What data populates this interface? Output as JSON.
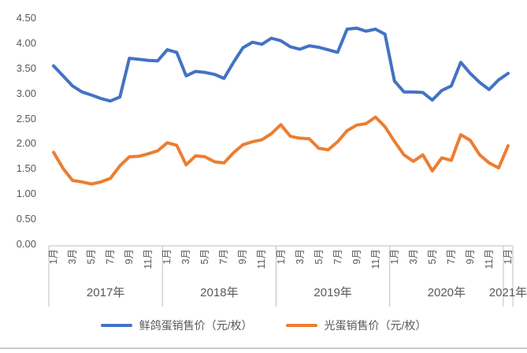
{
  "chart_data": {
    "type": "line",
    "title": "",
    "ylabel": "",
    "xlabel": "",
    "ylim": [
      0,
      4.5
    ],
    "y_tick_step": 0.5,
    "y_tick_labels": [
      "0.00",
      "0.50",
      "1.00",
      "1.50",
      "2.00",
      "2.50",
      "3.00",
      "3.50",
      "4.00",
      "4.50"
    ],
    "grid": false,
    "legend_position": "bottom",
    "x_axis": {
      "years": [
        {
          "label": "2017年",
          "month_count": 12,
          "month_labels": [
            "1月",
            "3月",
            "5月",
            "7月",
            "9月",
            "11月"
          ]
        },
        {
          "label": "2018年",
          "month_count": 12,
          "month_labels": [
            "1月",
            "3月",
            "5月",
            "7月",
            "9月",
            "11月"
          ]
        },
        {
          "label": "2019年",
          "month_count": 12,
          "month_labels": [
            "1月",
            "3月",
            "5月",
            "7月",
            "9月",
            "11月"
          ]
        },
        {
          "label": "2020年",
          "month_count": 12,
          "month_labels": [
            "1月",
            "3月",
            "5月",
            "7月",
            "9月",
            "11月"
          ]
        },
        {
          "label": "2021年",
          "month_count": 1,
          "month_labels": [
            "1月"
          ]
        }
      ]
    },
    "series": [
      {
        "name": "鲜鸽蛋销售价（元/枚）",
        "color": "#4472C4",
        "values": [
          3.55,
          3.35,
          3.15,
          3.03,
          2.97,
          2.9,
          2.85,
          2.93,
          3.7,
          3.68,
          3.66,
          3.65,
          3.87,
          3.82,
          3.35,
          3.44,
          3.42,
          3.38,
          3.3,
          3.62,
          3.91,
          4.02,
          3.98,
          4.1,
          4.05,
          3.93,
          3.88,
          3.95,
          3.92,
          3.87,
          3.82,
          4.28,
          4.3,
          4.24,
          4.28,
          4.18,
          3.25,
          3.03,
          3.03,
          3.02,
          2.87,
          3.06,
          3.15,
          3.62,
          3.4,
          3.22,
          3.08,
          3.27,
          3.4
        ]
      },
      {
        "name": "光蛋销售价（元/枚）",
        "color": "#ED7D31",
        "values": [
          1.83,
          1.51,
          1.27,
          1.24,
          1.2,
          1.24,
          1.31,
          1.56,
          1.74,
          1.75,
          1.8,
          1.86,
          2.02,
          1.97,
          1.58,
          1.76,
          1.74,
          1.64,
          1.62,
          1.82,
          1.98,
          2.04,
          2.08,
          2.2,
          2.38,
          2.15,
          2.11,
          2.1,
          1.91,
          1.88,
          2.04,
          2.26,
          2.37,
          2.4,
          2.53,
          2.34,
          2.05,
          1.78,
          1.65,
          1.78,
          1.46,
          1.72,
          1.67,
          2.18,
          2.07,
          1.78,
          1.62,
          1.52,
          1.96
        ]
      }
    ]
  }
}
